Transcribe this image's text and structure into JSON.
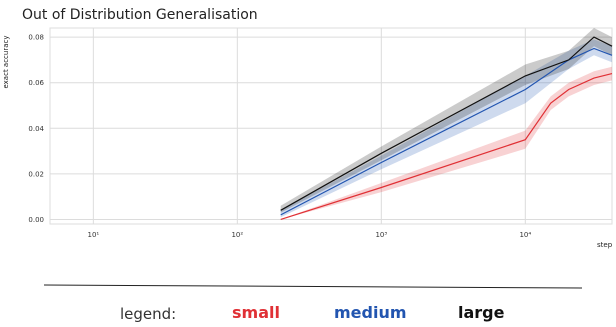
{
  "chart_data": {
    "type": "line",
    "title": "Out of Distribution Generalisation",
    "xlabel": "step",
    "ylabel": "exact accuracy",
    "xscale": "log",
    "xlim": [
      5,
      40000
    ],
    "ylim": [
      -0.002,
      0.084
    ],
    "x_ticks": [
      10,
      100,
      1000,
      10000
    ],
    "x_tick_labels": [
      "10¹",
      "10²",
      "10³",
      "10⁴"
    ],
    "y_ticks": [
      0.0,
      0.02,
      0.04,
      0.06,
      0.08
    ],
    "y_tick_labels": [
      "0.00",
      "0.02",
      "0.04",
      "0.06",
      "0.08"
    ],
    "grid": true,
    "series": [
      {
        "name": "small",
        "color": "#e03035",
        "x": [
          200,
          1000,
          10000,
          15000,
          20000,
          30000,
          40000
        ],
        "y": [
          0.0,
          0.014,
          0.035,
          0.051,
          0.057,
          0.062,
          0.064
        ],
        "lower": [
          0.0,
          0.012,
          0.031,
          0.048,
          0.054,
          0.059,
          0.061
        ],
        "upper": [
          0.0,
          0.016,
          0.039,
          0.054,
          0.06,
          0.065,
          0.067
        ]
      },
      {
        "name": "medium",
        "color": "#2255b0",
        "x": [
          200,
          1000,
          10000,
          20000,
          30000,
          40000
        ],
        "y": [
          0.002,
          0.025,
          0.057,
          0.07,
          0.075,
          0.072
        ],
        "lower": [
          0.001,
          0.022,
          0.051,
          0.066,
          0.072,
          0.069
        ],
        "upper": [
          0.004,
          0.028,
          0.063,
          0.074,
          0.079,
          0.076
        ]
      },
      {
        "name": "large",
        "color": "#111111",
        "x": [
          200,
          1000,
          10000,
          20000,
          30000,
          40000
        ],
        "y": [
          0.004,
          0.029,
          0.063,
          0.07,
          0.08,
          0.076
        ],
        "lower": [
          0.003,
          0.026,
          0.059,
          0.066,
          0.076,
          0.072
        ],
        "upper": [
          0.006,
          0.032,
          0.068,
          0.074,
          0.084,
          0.08
        ]
      }
    ]
  },
  "legend": {
    "prefix": "legend:",
    "items": [
      {
        "label": "small",
        "color": "#e03035"
      },
      {
        "label": "medium",
        "color": "#2255b0"
      },
      {
        "label": "large",
        "color": "#111111"
      }
    ]
  }
}
